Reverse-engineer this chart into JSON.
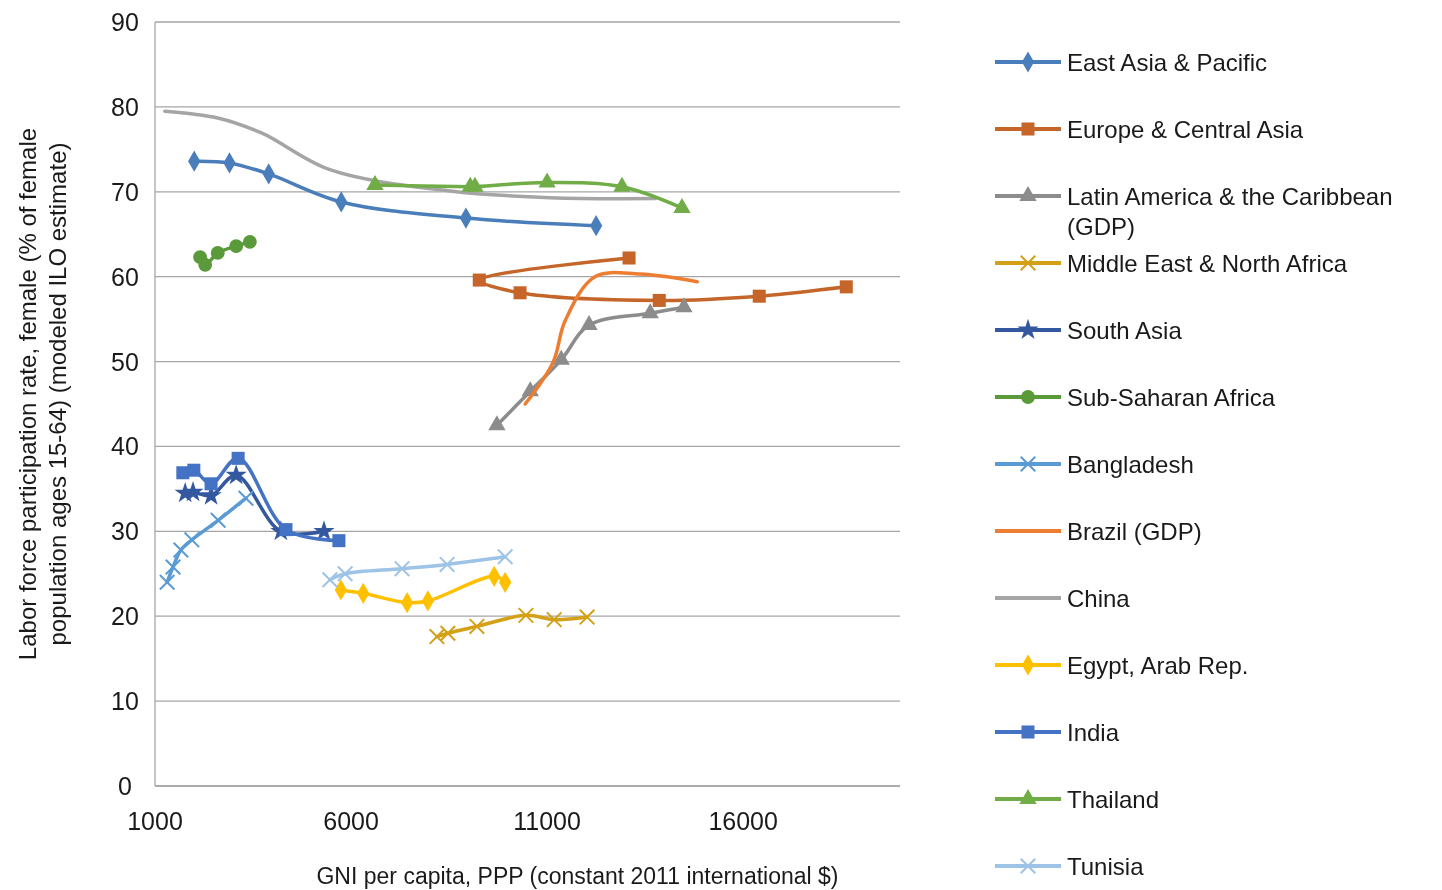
{
  "chart_data": {
    "type": "line",
    "xlabel": "GNI per capita, PPP (constant 2011 international $)",
    "ylabel": "Labor force participation rate, female (% of female population ages 15-64) (modeled ILO estimate)",
    "xlim": [
      1000,
      20000
    ],
    "xticks": [
      1000,
      6000,
      11000,
      16000
    ],
    "ylim": [
      0,
      90
    ],
    "yticks": [
      0,
      10,
      20,
      30,
      40,
      50,
      60,
      70,
      80,
      90
    ],
    "grid": "y",
    "legend": "right",
    "line_style": "solid",
    "series": [
      {
        "name": "East Asia & Pacific",
        "color": "#4a7ebb",
        "marker": "diamond",
        "x": [
          2000,
          2900,
          3900,
          5750,
          8930,
          12250
        ],
        "values": [
          73.6,
          73.4,
          72.1,
          68.8,
          66.9,
          66.0
        ]
      },
      {
        "name": "Europe & Central Asia",
        "color": "#c5652a",
        "marker": "square",
        "x": [
          13090,
          9270,
          10310,
          13860,
          16410,
          18630
        ],
        "values": [
          62.2,
          59.6,
          58.1,
          57.2,
          57.7,
          58.8
        ]
      },
      {
        "name": "Latin America & the Caribbean (GDP)",
        "color": "#8c8c8c",
        "marker": "triangle",
        "x": [
          9720,
          10570,
          11360,
          12070,
          13630,
          14490
        ],
        "values": [
          42.5,
          46.5,
          50.2,
          54.3,
          55.7,
          56.4
        ]
      },
      {
        "name": "Middle East & North Africa",
        "color": "#d4a017",
        "marker": "cross",
        "x": [
          8190,
          8470,
          9210,
          10460,
          11180,
          12020
        ],
        "values": [
          17.6,
          18.0,
          18.8,
          20.1,
          19.6,
          19.9
        ]
      },
      {
        "name": "South Asia",
        "color": "#34589f",
        "marker": "star",
        "x": [
          1770,
          1970,
          2430,
          3070,
          4210,
          5310
        ],
        "values": [
          34.5,
          34.6,
          34.2,
          36.6,
          30.0,
          30.0
        ]
      },
      {
        "name": "Sub-Saharan Africa",
        "color": "#5a9a3a",
        "marker": "circle",
        "x": [
          2150,
          2280,
          2600,
          3070,
          3420
        ],
        "values": [
          62.3,
          61.4,
          62.8,
          63.6,
          64.1
        ]
      },
      {
        "name": "Bangladesh",
        "color": "#5b9bd5",
        "marker": "cross",
        "x": [
          1310,
          1460,
          1660,
          1940,
          2610,
          3320
        ],
        "values": [
          24.0,
          25.8,
          27.8,
          29.0,
          31.3,
          33.9
        ]
      },
      {
        "name": "Brazil (GDP)",
        "color": "#ed7d31",
        "marker": "none",
        "x": [
          10440,
          11150,
          11460,
          12220,
          13370,
          14830
        ],
        "values": [
          45.0,
          49.9,
          54.8,
          60.0,
          60.3,
          59.4
        ]
      },
      {
        "name": "China",
        "color": "#a5a5a5",
        "marker": "none",
        "x": [
          1250,
          2600,
          3730,
          5460,
          8530,
          11080,
          13760
        ],
        "values": [
          79.5,
          78.7,
          76.9,
          72.6,
          70.1,
          69.3,
          69.2
        ]
      },
      {
        "name": "Egypt, Arab Rep.",
        "color": "#ffc000",
        "marker": "diamond",
        "x": [
          5740,
          6310,
          7430,
          7960,
          9650,
          9930
        ],
        "values": [
          23.1,
          22.7,
          21.6,
          21.8,
          24.7,
          24.0
        ]
      },
      {
        "name": "India",
        "color": "#4472c4",
        "marker": "square",
        "x": [
          1710,
          1990,
          2430,
          3120,
          4340,
          5690
        ],
        "values": [
          36.9,
          37.2,
          35.6,
          38.6,
          30.2,
          28.9
        ]
      },
      {
        "name": "Thailand",
        "color": "#70ad47",
        "marker": "triangle",
        "x": [
          6610,
          9040,
          9160,
          11000,
          12910,
          14440
        ],
        "values": [
          70.8,
          70.6,
          70.6,
          71.1,
          70.6,
          68.1
        ]
      },
      {
        "name": "Tunisia",
        "color": "#9dc3e6",
        "marker": "cross",
        "x": [
          5460,
          5850,
          7300,
          8450,
          9930
        ],
        "values": [
          24.3,
          25.0,
          25.6,
          26.1,
          27.0
        ]
      }
    ]
  }
}
